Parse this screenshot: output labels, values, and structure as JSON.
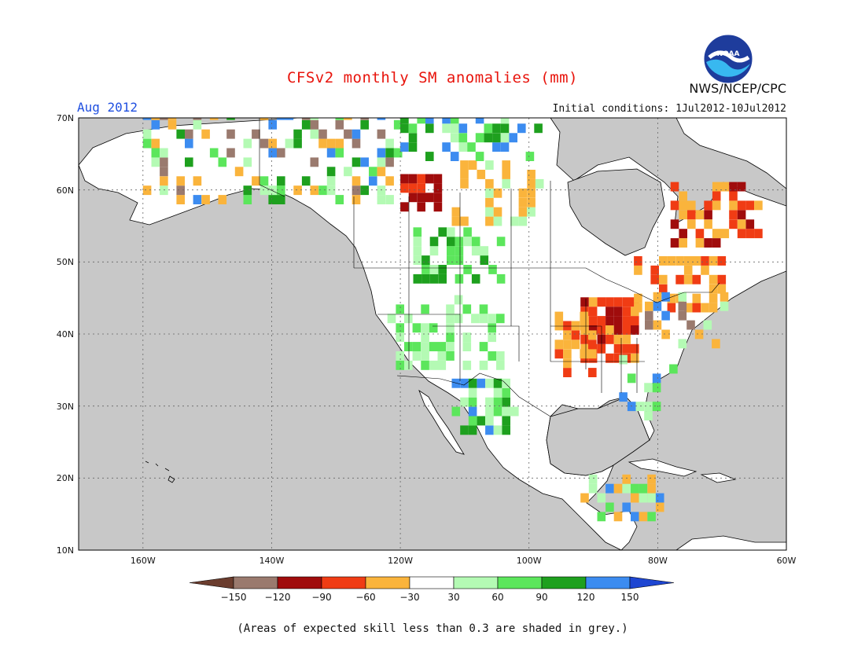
{
  "header": {
    "title": "CFSv2 monthly SM anomalies (mm)",
    "month": "Aug 2012",
    "initial_conditions": "Initial conditions: 1Jul2012-10Jul2012",
    "agency": "NWS/NCEP/CPC",
    "logo_text": "NOAA"
  },
  "axes": {
    "lat_labels": [
      "70N",
      "60N",
      "50N",
      "40N",
      "30N",
      "20N",
      "10N"
    ],
    "lon_labels": [
      "160W",
      "140W",
      "120W",
      "100W",
      "80W",
      "60W"
    ],
    "lon_range": [
      -170,
      -60
    ],
    "lat_range": [
      10,
      70
    ],
    "grid": true
  },
  "colorbar": {
    "colors": [
      "#6b3d2e",
      "#9a7a6e",
      "#a00c0c",
      "#f03c14",
      "#fab43c",
      "#ffffff",
      "#b4fab4",
      "#5ce65c",
      "#1ea01e",
      "#3c8cf0",
      "#1e46d2"
    ],
    "labels": [
      "-150",
      "-120",
      "-90",
      "-60",
      "-30",
      "30",
      "60",
      "90",
      "120",
      "150"
    ]
  },
  "colors": {
    "ocean": "#c8c8c8",
    "land": "#ffffff",
    "title": "#e8140c",
    "month": "#1f4fe0"
  },
  "footnote": "(Areas of expected skill less than 0.3 are shaded in grey.)"
}
